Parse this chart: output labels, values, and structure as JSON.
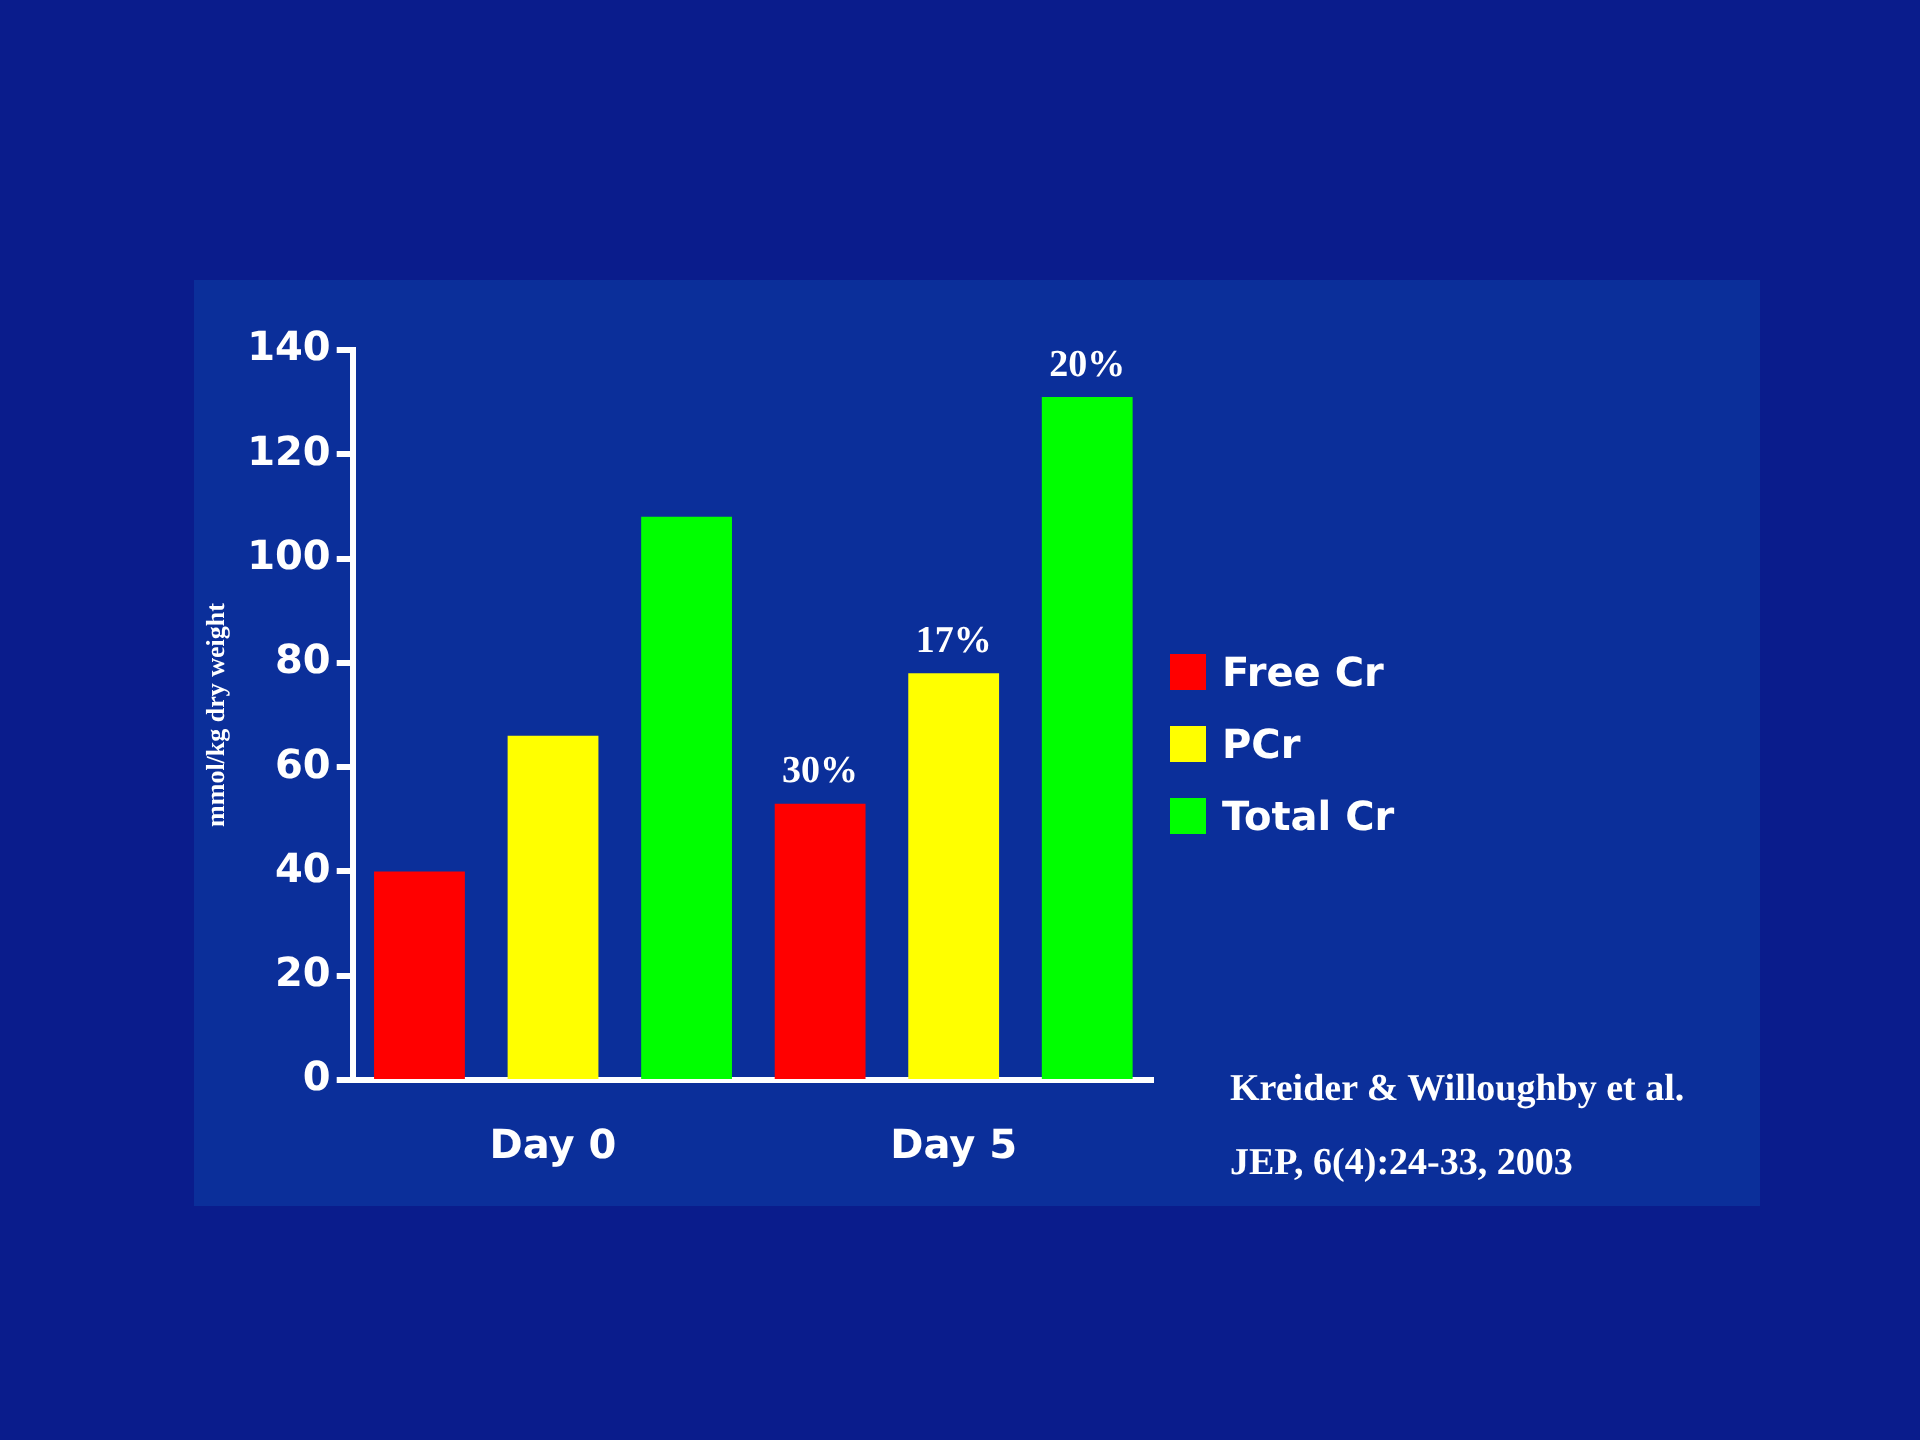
{
  "chart_data": {
    "type": "bar",
    "ylabel": "mmol/kg dry weight",
    "categories": [
      "Day 0",
      "Day 5"
    ],
    "series": [
      {
        "name": "Free Cr",
        "color": "#ff0000",
        "values": [
          40,
          53
        ]
      },
      {
        "name": "PCr",
        "color": "#ffff00",
        "values": [
          66,
          78
        ]
      },
      {
        "name": "Total Cr",
        "color": "#00ff00",
        "values": [
          108,
          131
        ]
      }
    ],
    "ylim": [
      0,
      140
    ],
    "yticks": [
      0,
      20,
      40,
      60,
      80,
      100,
      120,
      140
    ],
    "grid": false,
    "legend": "right",
    "annotations": [
      "30%",
      "17%",
      "20%",
      "Kreider & Willoughby et al.",
      "JEP, 6(4):24-33, 2003"
    ]
  }
}
